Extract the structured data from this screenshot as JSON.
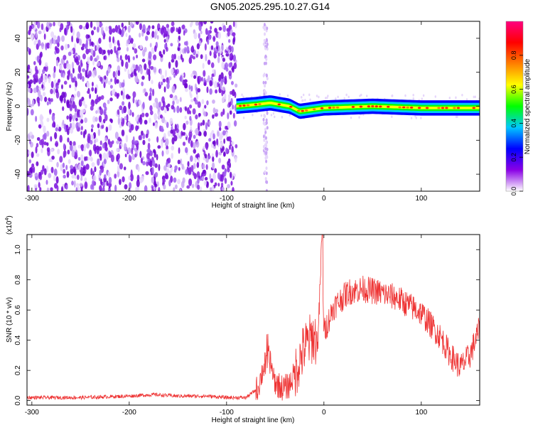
{
  "title": "GN05.2025.295.10.27.G14",
  "chart_data": [
    {
      "type": "heatmap",
      "xlabel": "Height of straight line (km)",
      "ylabel": "Frequency (Hz)",
      "xlim": [
        -305,
        160
      ],
      "ylim": [
        -50,
        50
      ],
      "x_ticks": [
        -300,
        -200,
        -100,
        0,
        100
      ],
      "y_ticks": [
        -40,
        -20,
        0,
        20,
        40
      ],
      "colorbar": {
        "label": "Normalized spectral amplitude",
        "range": [
          0,
          1
        ],
        "ticks": [
          0.0,
          0.2,
          0.4,
          0.6,
          0.8
        ],
        "colors": [
          "#ffffff",
          "#8a00e6",
          "#0000ff",
          "#00c8ff",
          "#00ff00",
          "#ffff00",
          "#ff8000",
          "#ff0000",
          "#ff0080"
        ]
      },
      "ridge": [
        {
          "x": -90,
          "y": 0
        },
        {
          "x": -70,
          "y": 1
        },
        {
          "x": -55,
          "y": 2
        },
        {
          "x": -35,
          "y": 0
        },
        {
          "x": -25,
          "y": -3
        },
        {
          "x": 0,
          "y": -1
        },
        {
          "x": 50,
          "y": 0
        },
        {
          "x": 100,
          "y": -1
        },
        {
          "x": 160,
          "y": -1
        }
      ]
    },
    {
      "type": "line",
      "xlabel": "Height of straight line (km)",
      "ylabel": "SNR (10 * v/v)",
      "y_multiplier": "(x10",
      "y_multiplier_exp": "4",
      "y_multiplier_close": ")",
      "xlim": [
        -305,
        160
      ],
      "ylim": [
        -0.03,
        1.1
      ],
      "x_ticks": [
        -300,
        -200,
        -100,
        0,
        100
      ],
      "y_ticks": [
        0.0,
        0.2,
        0.4,
        0.6,
        0.8,
        1.0
      ],
      "line_color": "#ee3333",
      "series": [
        {
          "x": [
            -305,
            -250,
            -200,
            -175,
            -150,
            -120,
            -100,
            -80,
            -68,
            -62,
            -56,
            -50,
            -42,
            -36,
            -30,
            -20,
            -12,
            -6,
            -2,
            0,
            10,
            25,
            40,
            55,
            75,
            100,
            120,
            130,
            140,
            150,
            160
          ],
          "y": [
            0.02,
            0.02,
            0.03,
            0.04,
            0.03,
            0.03,
            0.02,
            0.02,
            0.08,
            0.22,
            0.28,
            0.12,
            0.08,
            0.1,
            0.18,
            0.35,
            0.42,
            0.4,
            1.1,
            0.45,
            0.62,
            0.72,
            0.74,
            0.72,
            0.68,
            0.58,
            0.42,
            0.3,
            0.22,
            0.3,
            0.48
          ]
        }
      ]
    }
  ]
}
